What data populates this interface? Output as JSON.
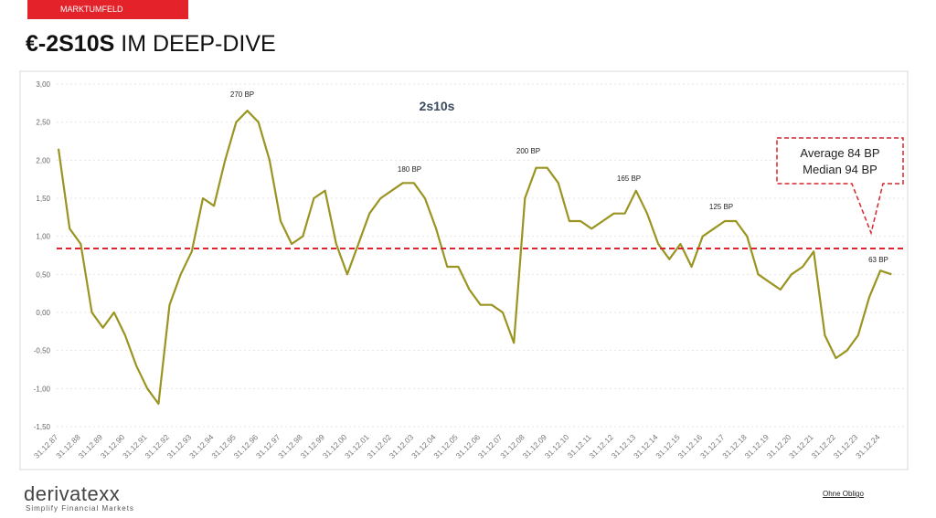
{
  "header": {
    "tag": "MARKTUMFELD",
    "title_bold": "€-2S10S",
    "title_rest": "IM DEEP-DIVE"
  },
  "chart_data": {
    "type": "line",
    "title": "2s10s",
    "categories": [
      "31.12.87",
      null,
      "31.12.88",
      null,
      "31.12.89",
      null,
      "31.12.90",
      null,
      "31.12.91",
      null,
      "31.12.92",
      null,
      "31.12.93",
      null,
      "31.12.94",
      null,
      "31.12.95",
      null,
      "31.12.96",
      null,
      "31.12.97",
      null,
      "31.12.98",
      null,
      "31.12.99",
      null,
      "31.12.00",
      null,
      "31.12.01",
      null,
      "31.12.02",
      null,
      "31.12.03",
      null,
      "31.12.04",
      null,
      "31.12.05",
      null,
      "31.12.06",
      null,
      "31.12.07",
      null,
      "31.12.08",
      null,
      "31.12.09",
      null,
      "31.12.10",
      null,
      "31.12.11",
      null,
      "31.12.12",
      null,
      "31.12.13",
      null,
      "31.12.14",
      null,
      "31.12.15",
      null,
      "31.12.16",
      null,
      "31.12.17",
      null,
      "31.12.18",
      null,
      "31.12.19",
      null,
      "31.12.20",
      null,
      "31.12.21",
      null,
      "31.12.22",
      null,
      "31.12.23",
      null,
      "31.12.24",
      null
    ],
    "series": [
      {
        "name": "2s10s",
        "color": "#9a9420",
        "values": [
          2.15,
          1.1,
          0.9,
          0.0,
          -0.2,
          0.0,
          -0.3,
          -0.7,
          -1.0,
          -1.2,
          0.1,
          0.5,
          0.8,
          1.5,
          1.4,
          2.0,
          2.5,
          2.65,
          2.5,
          2.0,
          1.2,
          0.9,
          1.0,
          1.5,
          1.6,
          0.9,
          0.5,
          0.9,
          1.3,
          1.5,
          1.6,
          1.7,
          1.7,
          1.5,
          1.1,
          0.6,
          0.6,
          0.3,
          0.1,
          0.1,
          0.0,
          -0.4,
          1.5,
          1.9,
          1.9,
          1.7,
          1.2,
          1.2,
          1.1,
          1.2,
          1.3,
          1.3,
          1.6,
          1.3,
          0.9,
          0.7,
          0.9,
          0.6,
          1.0,
          1.1,
          1.2,
          1.2,
          1.0,
          0.5,
          0.4,
          0.3,
          0.5,
          0.6,
          0.8,
          -0.3,
          -0.6,
          -0.5,
          -0.3,
          0.2,
          0.55,
          0.5
        ]
      }
    ],
    "average_line": 0.84,
    "average_color": "#d7262d",
    "ylim": [
      -1.5,
      3.0
    ],
    "yticks": [
      {
        "value": -1.5,
        "label": "-1,50"
      },
      {
        "value": -1.0,
        "label": "-1,00"
      },
      {
        "value": -0.5,
        "label": "-0,50"
      },
      {
        "value": 0,
        "label": "0,00"
      },
      {
        "value": 0.5,
        "label": "0,50"
      },
      {
        "value": 1.0,
        "label": "1,00"
      },
      {
        "value": 1.5,
        "label": "1,50"
      },
      {
        "value": 2.0,
        "label": "2,00"
      },
      {
        "value": 2.5,
        "label": "2,50"
      },
      {
        "value": 3.0,
        "label": "3,00"
      }
    ],
    "grid": true,
    "annotations": [
      "270 BP",
      "180 BP",
      "200 BP",
      "165 BP",
      "125 BP",
      "63 BP"
    ],
    "callout": [
      "Average 84 BP",
      "Median 94 BP"
    ]
  },
  "footer": {
    "logo": "derivatexx",
    "slogan": "Simplify Financial Markets",
    "note": "Ohne Obligo"
  }
}
